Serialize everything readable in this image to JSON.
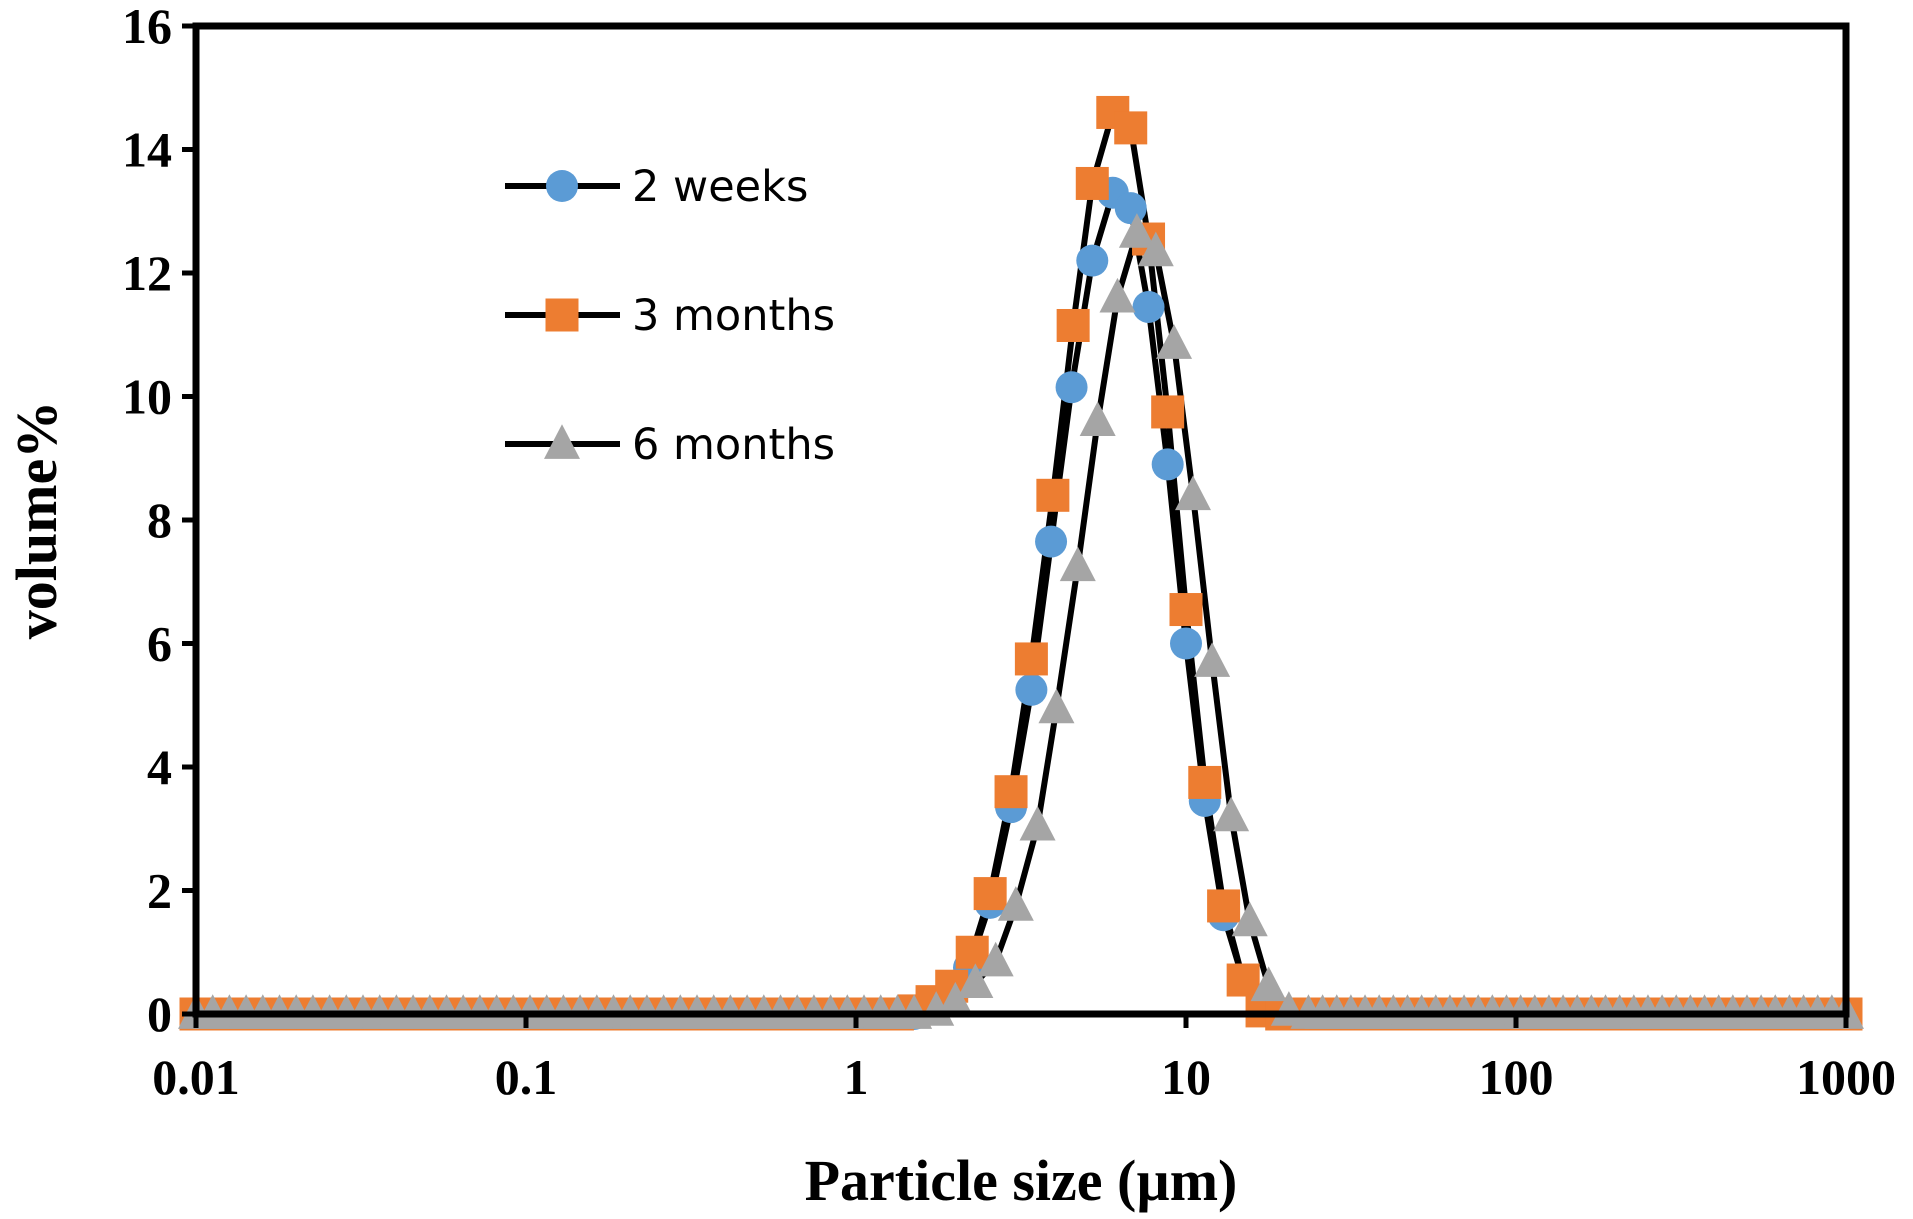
{
  "chart_data": {
    "type": "line",
    "xscale": "log",
    "xlim": [
      0.01,
      1000
    ],
    "ylim": [
      0,
      16
    ],
    "xticks": [
      0.01,
      0.1,
      1,
      10,
      100,
      1000
    ],
    "xtick_labels": [
      "0.01",
      "0.1",
      "1",
      "10",
      "100",
      "1000"
    ],
    "yticks": [
      0,
      2,
      4,
      6,
      8,
      10,
      12,
      14,
      16
    ],
    "ytick_labels": [
      "0",
      "2",
      "4",
      "6",
      "8",
      "10",
      "12",
      "14",
      "16"
    ],
    "xlabel": "Particle size (µm)",
    "ylabel": "volume%",
    "grid": false,
    "legend_position": "top-left",
    "line_color": "#000000",
    "series": [
      {
        "name": "2 weeks",
        "marker": "circle",
        "marker_color": "#5B9BD5",
        "points": [
          [
            1.5,
            0
          ],
          [
            1.7,
            0.08
          ],
          [
            1.9,
            0.25
          ],
          [
            2.2,
            0.75
          ],
          [
            2.55,
            1.8
          ],
          [
            2.95,
            3.35
          ],
          [
            3.4,
            5.25
          ],
          [
            3.9,
            7.65
          ],
          [
            4.5,
            10.15
          ],
          [
            5.2,
            12.2
          ],
          [
            6.0,
            13.3
          ],
          [
            6.8,
            13.05
          ],
          [
            7.7,
            11.45
          ],
          [
            8.8,
            8.9
          ],
          [
            10.0,
            6.0
          ],
          [
            11.4,
            3.45
          ],
          [
            13.0,
            1.6
          ],
          [
            14.9,
            0.55
          ],
          [
            17.0,
            0.1
          ],
          [
            19.5,
            0
          ]
        ]
      },
      {
        "name": "3 months",
        "marker": "square",
        "marker_color": "#ED7D31",
        "points": [
          [
            1.5,
            0.05
          ],
          [
            1.7,
            0.2
          ],
          [
            1.95,
            0.45
          ],
          [
            2.25,
            1.0
          ],
          [
            2.55,
            1.95
          ],
          [
            2.95,
            3.6
          ],
          [
            3.4,
            5.75
          ],
          [
            3.95,
            8.4
          ],
          [
            4.55,
            11.15
          ],
          [
            5.2,
            13.45
          ],
          [
            6.0,
            14.6
          ],
          [
            6.8,
            14.35
          ],
          [
            7.7,
            12.55
          ],
          [
            8.8,
            9.75
          ],
          [
            10.0,
            6.55
          ],
          [
            11.4,
            3.75
          ],
          [
            13.0,
            1.75
          ],
          [
            14.9,
            0.55
          ],
          [
            17.0,
            0.05
          ],
          [
            19.5,
            0
          ]
        ]
      },
      {
        "name": "6 months",
        "marker": "triangle",
        "marker_color": "#A5A5A5",
        "points": [
          [
            1.5,
            0
          ],
          [
            1.75,
            0.05
          ],
          [
            2.0,
            0.2
          ],
          [
            2.3,
            0.5
          ],
          [
            2.65,
            0.85
          ],
          [
            3.05,
            1.75
          ],
          [
            3.55,
            3.05
          ],
          [
            4.05,
            4.95
          ],
          [
            4.7,
            7.25
          ],
          [
            5.4,
            9.6
          ],
          [
            6.2,
            11.6
          ],
          [
            7.1,
            12.65
          ],
          [
            8.1,
            12.35
          ],
          [
            9.2,
            10.85
          ],
          [
            10.5,
            8.4
          ],
          [
            12.0,
            5.7
          ],
          [
            13.7,
            3.2
          ],
          [
            15.6,
            1.5
          ],
          [
            17.8,
            0.45
          ],
          [
            20.5,
            0.05
          ],
          [
            23.5,
            0
          ]
        ]
      }
    ]
  }
}
